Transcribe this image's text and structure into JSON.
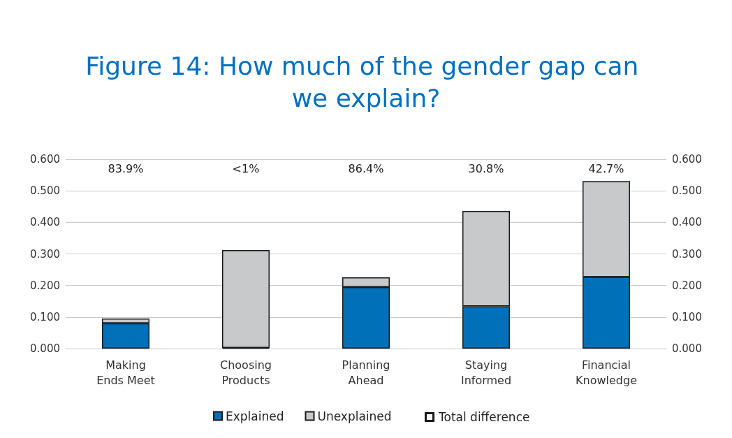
{
  "chart_data": {
    "type": "bar",
    "title": "Figure 14: How much of the gender gap can we explain?",
    "categories": [
      "Making Ends Meet",
      "Choosing Products",
      "Planning Ahead",
      "Staying Informed",
      "Financial Knowledge"
    ],
    "stacked": true,
    "series": [
      {
        "name": "Explained",
        "color": "#0070b8",
        "values": [
          0.08,
          0.002,
          0.195,
          0.134,
          0.227
        ]
      },
      {
        "name": "Unexplained",
        "color": "#c8c9cb",
        "values": [
          0.015,
          0.31,
          0.031,
          0.302,
          0.304
        ]
      }
    ],
    "ylim": [
      0,
      0.6
    ],
    "yticks": [
      {
        "value": 0,
        "label": "0.000"
      },
      {
        "value": 0.1,
        "label": "0.100"
      },
      {
        "value": 0.2,
        "label": "0.200"
      },
      {
        "value": 0.3,
        "label": "0.300"
      },
      {
        "value": 0.4,
        "label": "0.400"
      },
      {
        "value": 0.5,
        "label": "0.500"
      },
      {
        "value": 0.6,
        "label": "0.600"
      }
    ],
    "y2lim": [
      0,
      0.6
    ],
    "y2ticks": [
      {
        "value": 0,
        "label": "0.000"
      },
      {
        "value": 0.1,
        "label": "0.100"
      },
      {
        "value": 0.2,
        "label": "0.200"
      },
      {
        "value": 0.3,
        "label": "0.300"
      },
      {
        "value": 0.4,
        "label": "0.400"
      },
      {
        "value": 0.5,
        "label": "0.500"
      },
      {
        "value": 0.6,
        "label": "0.600"
      }
    ],
    "annotations": [
      "83.9%",
      "<1%",
      "86.4%",
      "30.8%",
      "42.7%",
      "Total difference"
    ],
    "grid": "y",
    "legend": "bottom"
  }
}
